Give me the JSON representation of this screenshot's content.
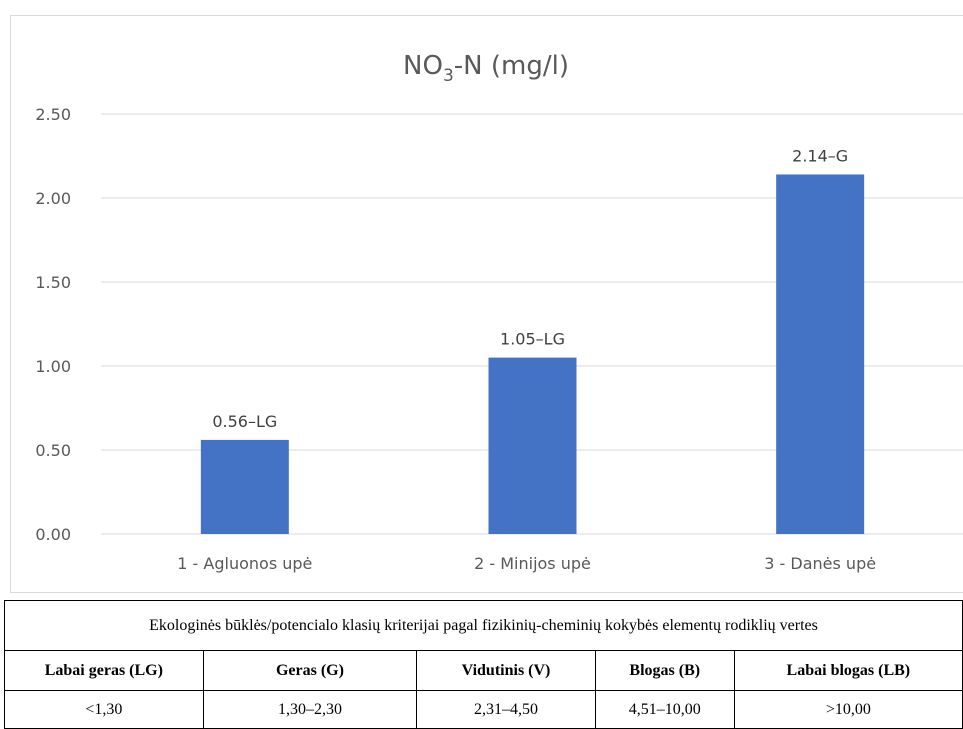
{
  "chart_data": {
    "type": "bar",
    "title_main": "NO",
    "title_sub": "3",
    "title_rest": "-N (mg/l)",
    "categories": [
      "1 - Agluonos upė",
      "2 - Minijos upė",
      "3 - Danės upė"
    ],
    "values": [
      0.56,
      1.05,
      2.14
    ],
    "data_labels": [
      "0.56–LG",
      "1.05–LG",
      "2.14–G"
    ],
    "y_ticks": [
      "0.00",
      "0.50",
      "1.00",
      "1.50",
      "2.00",
      "2.50"
    ],
    "ylim": [
      0,
      2.5
    ],
    "grid": true,
    "bar_color": "#4472c4",
    "grid_color": "#d9d9d9",
    "text_color": "#595959"
  },
  "table": {
    "caption": "Ekologinės būklės/potencialo klasių kriterijai pagal fizikinių-cheminių kokybės elementų rodiklių vertes",
    "headers": [
      "Labai geras (LG)",
      "Geras (G)",
      "Vidutinis (V)",
      "Blogas (B)",
      "Labai blogas (LB)"
    ],
    "values": [
      "<1,30",
      "1,30–2,30",
      "2,31–4,50",
      "4,51–10,00",
      ">10,00"
    ]
  }
}
